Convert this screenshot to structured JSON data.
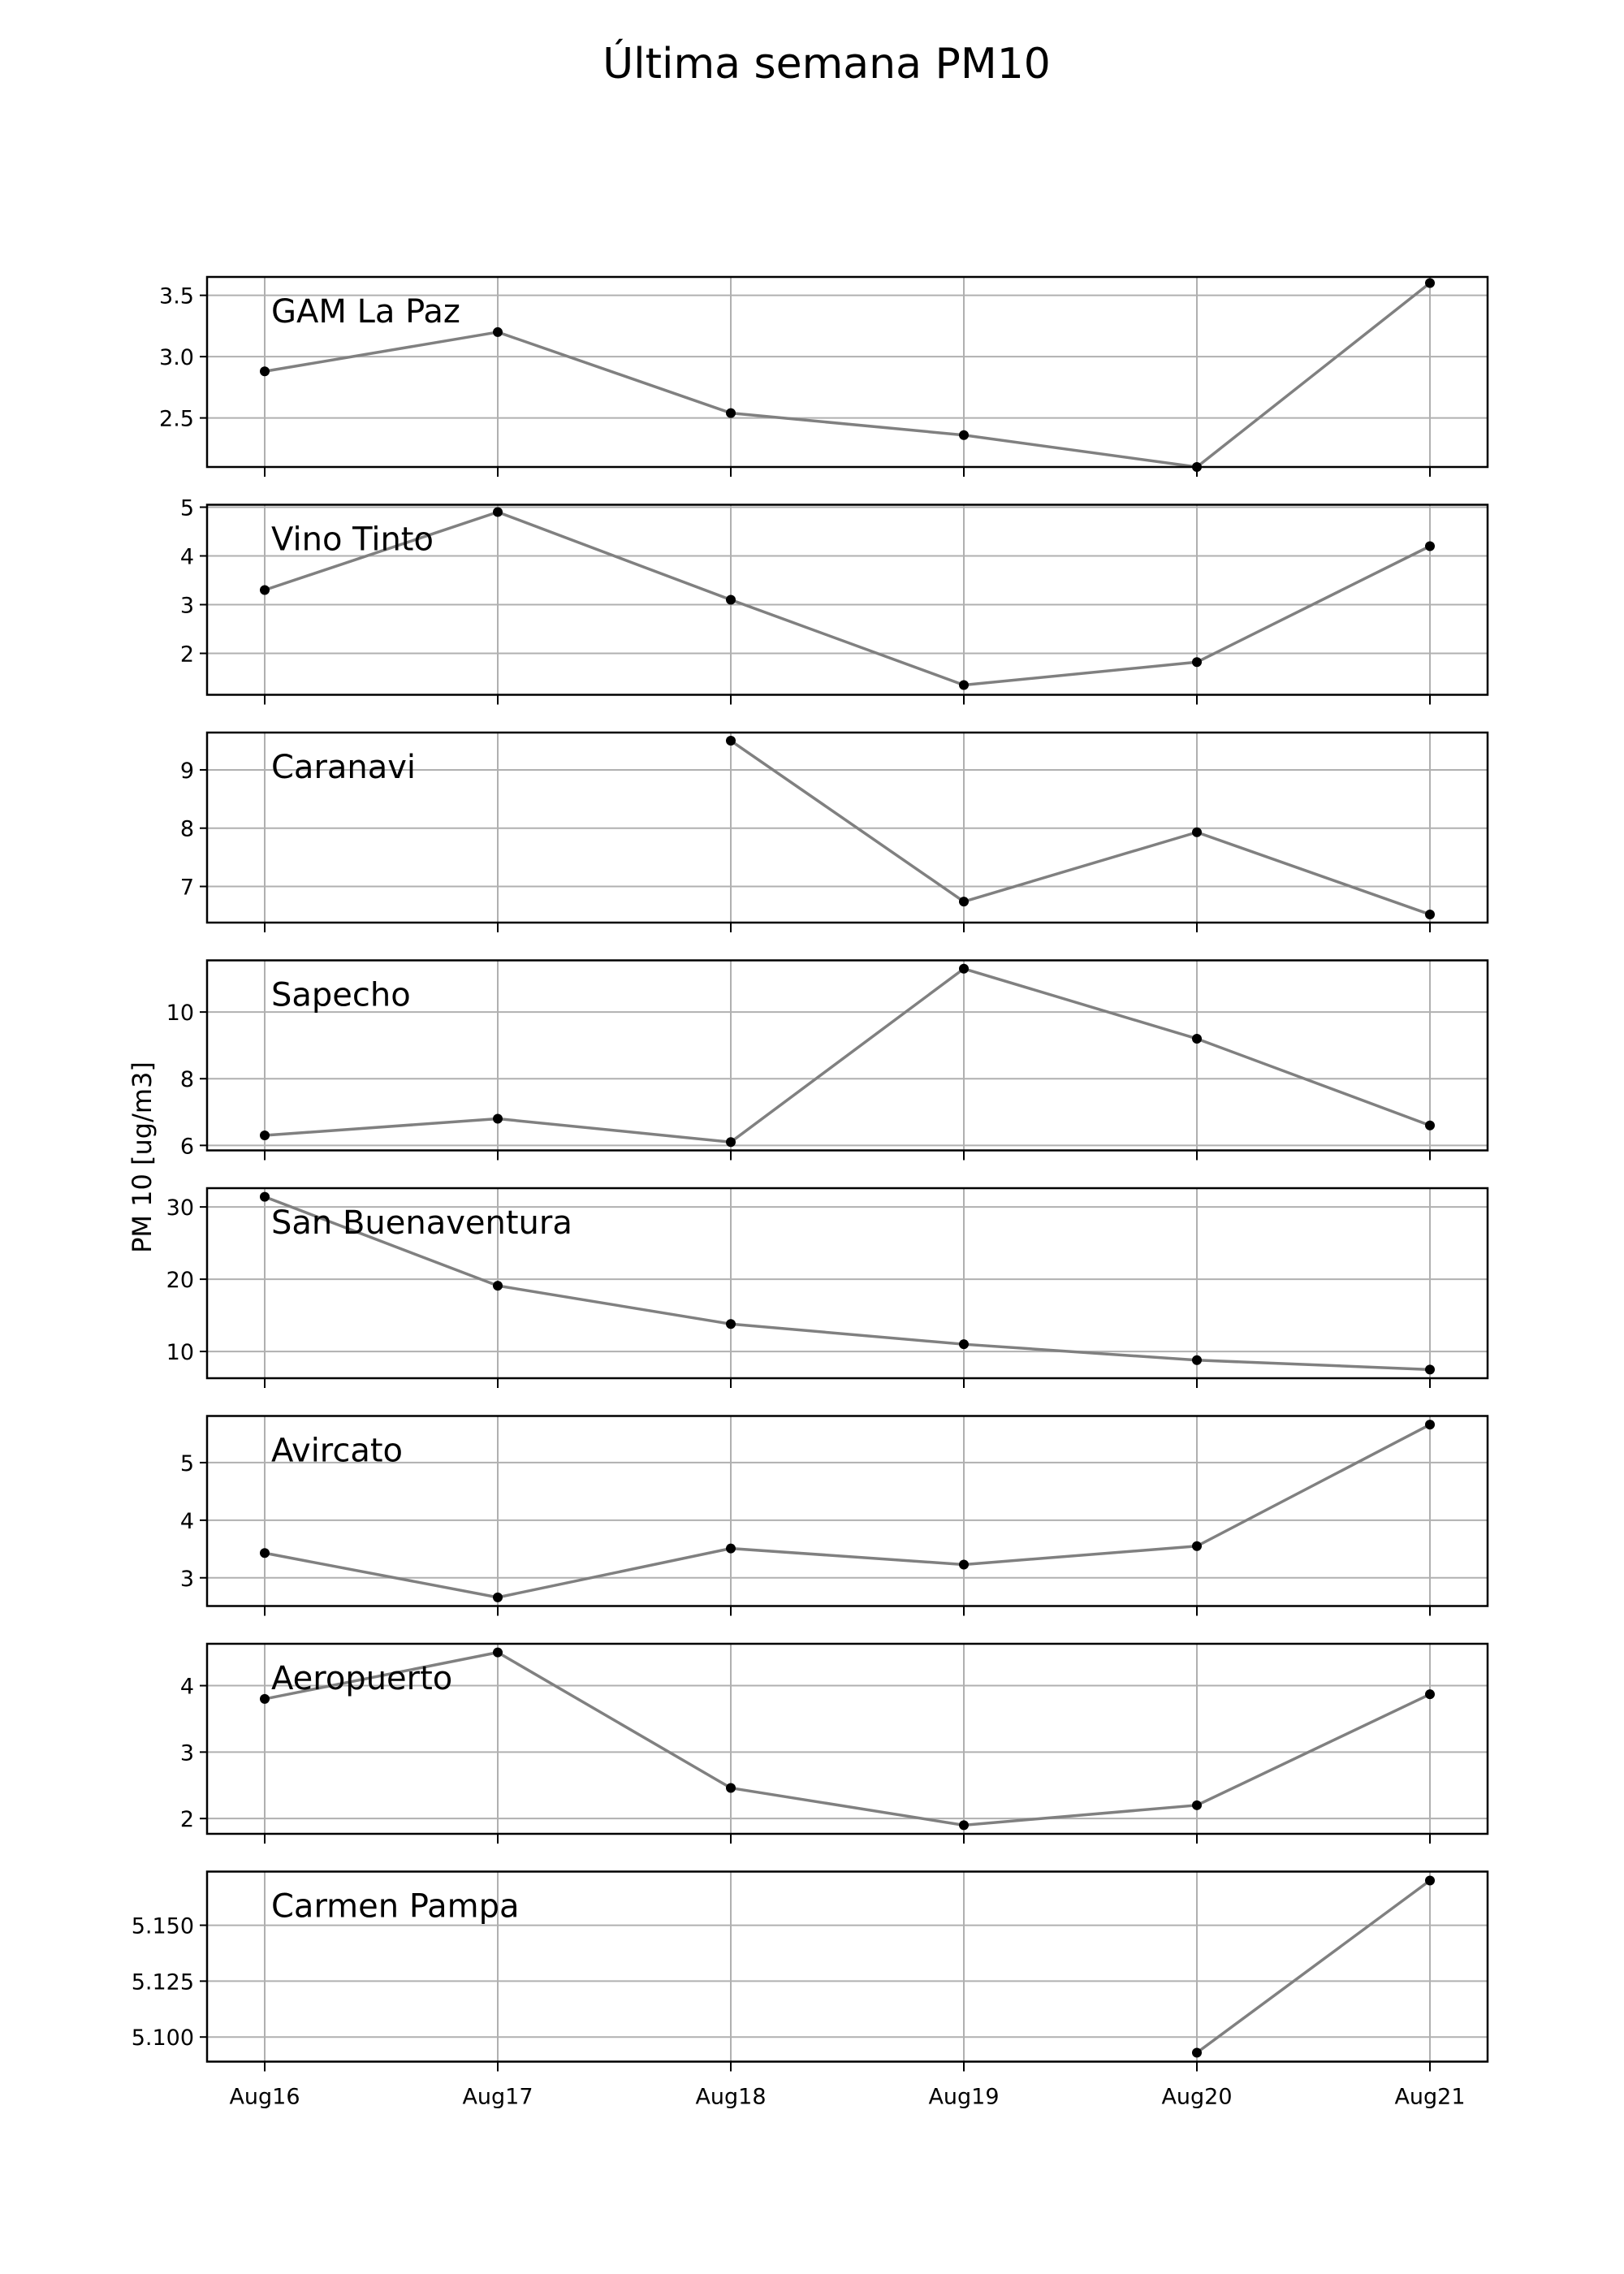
{
  "chart_data": {
    "type": "line",
    "title": "Última semana PM10",
    "ylabel": "PM 10 [ug/m3]",
    "xlabel": "",
    "categories": [
      "Aug16",
      "Aug17",
      "Aug18",
      "Aug19",
      "Aug20",
      "Aug21"
    ],
    "grid": true,
    "colors": {
      "line": "#808080",
      "marker": "#000000",
      "grid": "#b0b0b0",
      "axes": "#000000"
    },
    "panels": [
      {
        "name": "GAM La Paz",
        "values": [
          2.88,
          3.2,
          2.54,
          2.36,
          2.1,
          3.6
        ],
        "ylim": [
          2.1,
          3.65
        ],
        "yticks": [
          2.5,
          3.0,
          3.5
        ],
        "tickDecimals": 1
      },
      {
        "name": "Vino Tinto",
        "values": [
          3.3,
          4.9,
          3.1,
          1.35,
          1.82,
          4.2
        ],
        "ylim": [
          1.15,
          5.05
        ],
        "yticks": [
          2,
          3,
          4,
          5
        ],
        "tickDecimals": 0
      },
      {
        "name": "Caranavi",
        "values": [
          null,
          null,
          9.5,
          6.74,
          7.93,
          6.52
        ],
        "ylim": [
          6.38,
          9.64
        ],
        "yticks": [
          7,
          8,
          9
        ],
        "tickDecimals": 0
      },
      {
        "name": "Sapecho",
        "values": [
          6.3,
          6.8,
          6.1,
          11.3,
          9.2,
          6.6
        ],
        "ylim": [
          5.85,
          11.55
        ],
        "yticks": [
          6,
          8,
          10
        ],
        "tickDecimals": 0
      },
      {
        "name": "San Buenaventura",
        "values": [
          31.4,
          19.1,
          13.8,
          11.0,
          8.8,
          7.5
        ],
        "ylim": [
          6.3,
          32.6
        ],
        "yticks": [
          10,
          20,
          30
        ],
        "tickDecimals": 0
      },
      {
        "name": "Avircato",
        "values": [
          3.43,
          2.66,
          3.51,
          3.23,
          3.55,
          5.66
        ],
        "ylim": [
          2.51,
          5.81
        ],
        "yticks": [
          3,
          4,
          5
        ],
        "tickDecimals": 0
      },
      {
        "name": "Aeropuerto",
        "values": [
          3.8,
          4.5,
          2.46,
          1.9,
          2.2,
          3.87
        ],
        "ylim": [
          1.77,
          4.63
        ],
        "yticks": [
          2,
          3,
          4
        ],
        "tickDecimals": 0
      },
      {
        "name": "Carmen Pampa",
        "values": [
          null,
          null,
          null,
          null,
          5.093,
          5.17
        ],
        "ylim": [
          5.089,
          5.174
        ],
        "yticks": [
          5.1,
          5.125,
          5.15
        ],
        "tickDecimals": 3
      }
    ]
  }
}
